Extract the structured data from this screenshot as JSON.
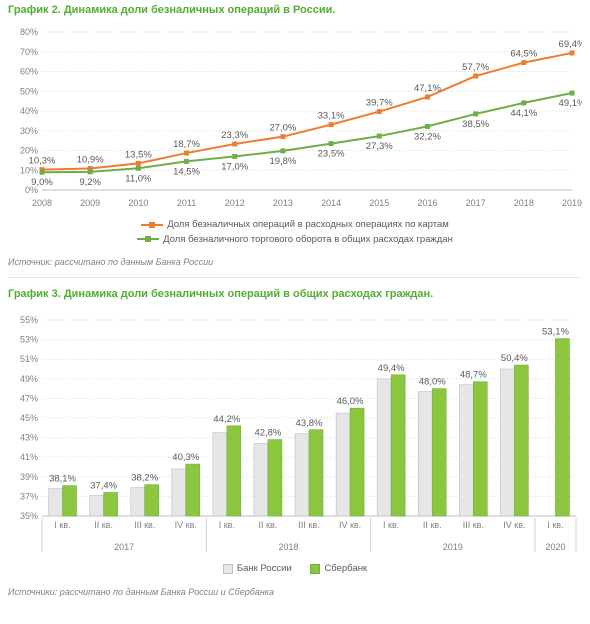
{
  "chart2": {
    "title": "График 2. Динамика доли безналичных операций в России.",
    "title_color": "#52ae32",
    "type": "line",
    "background": "#ffffff",
    "grid_color": "#d9d9d9",
    "axis_color": "#bfbfbf",
    "label_color": "#595959",
    "tick_color": "#808080",
    "label_fontsize": 9.5,
    "tick_fontsize": 9,
    "ylim": [
      0,
      80
    ],
    "ytick_step": 10,
    "ytick_suffix": "%",
    "categories": [
      "2008",
      "2009",
      "2010",
      "2011",
      "2012",
      "2013",
      "2014",
      "2015",
      "2016",
      "2017",
      "2018",
      "2019"
    ],
    "series": [
      {
        "name": "Доля безналичных операций в расходных операциях по картам",
        "color": "#ed7d31",
        "marker": "square",
        "marker_size": 5,
        "line_width": 2,
        "values": [
          10.3,
          10.9,
          13.5,
          18.7,
          23.3,
          27.0,
          33.1,
          39.7,
          47.1,
          57.7,
          64.5,
          69.4
        ],
        "labels": [
          "10,3%",
          "10,9%",
          "13,5%",
          "18,7%",
          "23,3%",
          "27,0%",
          "33,1%",
          "39,7%",
          "47,1%",
          "57,7%",
          "64,5%",
          "69,4%"
        ],
        "label_pos": "above"
      },
      {
        "name": "Доля безналичного торгового оборота в общих расходах граждан",
        "color": "#70ad47",
        "marker": "square",
        "marker_size": 5,
        "line_width": 2,
        "values": [
          9.0,
          9.2,
          11.0,
          14.5,
          17.0,
          19.8,
          23.5,
          27.3,
          32.2,
          38.5,
          44.1,
          49.1
        ],
        "labels": [
          "9,0%",
          "9,2%",
          "11,0%",
          "14,5%",
          "17,0%",
          "19,8%",
          "23,5%",
          "27,3%",
          "32,2%",
          "38,5%",
          "44,1%",
          "49,1%"
        ],
        "label_pos": "below"
      }
    ],
    "source": "Источник: рассчитано по данным Банка России"
  },
  "chart3": {
    "title": "График 3. Динамика доли безналичных операций в общих расходах граждан.",
    "title_color": "#52ae32",
    "type": "bar",
    "background": "#ffffff",
    "grid_color": "#d9d9d9",
    "axis_color": "#bfbfbf",
    "label_color": "#595959",
    "tick_color": "#808080",
    "label_fontsize": 9.5,
    "tick_fontsize": 9,
    "ylim": [
      35,
      55
    ],
    "ytick_step": 2,
    "ytick_suffix": "%",
    "categories": [
      "I кв.",
      "II кв.",
      "III кв.",
      "IV кв.",
      "I кв.",
      "II кв.",
      "III кв.",
      "IV кв.",
      "I кв.",
      "II кв.",
      "III кв.",
      "IV кв.",
      "I кв."
    ],
    "groups": [
      {
        "label": "2017",
        "span": [
          0,
          3
        ]
      },
      {
        "label": "2018",
        "span": [
          4,
          7
        ]
      },
      {
        "label": "2019",
        "span": [
          8,
          11
        ]
      },
      {
        "label": "2020",
        "span": [
          12,
          12
        ]
      }
    ],
    "series": [
      {
        "name": "Банк России",
        "color": "#e6e6e6",
        "border": "#bfbfbf",
        "values": [
          37.8,
          37.1,
          37.9,
          39.8,
          43.5,
          42.4,
          43.4,
          45.5,
          49.0,
          47.7,
          48.4,
          50.0,
          null
        ]
      },
      {
        "name": "Сбербанк",
        "color": "#8cc63f",
        "border": "#70ad47",
        "values": [
          38.1,
          37.4,
          38.2,
          40.3,
          44.2,
          42.8,
          43.8,
          46.0,
          49.4,
          48.0,
          48.7,
          50.4,
          53.1
        ]
      }
    ],
    "bar_labels": [
      "38,1%",
      "37,4%",
      "38,2%",
      "40,3%",
      "44,2%",
      "42,8%",
      "43,8%",
      "46,0%",
      "49,4%",
      "48,0%",
      "48,7%",
      "50,4%",
      "53,1%"
    ],
    "bar_width": 0.34,
    "source": "Источники: рассчитано по данным Банка России и Сбербанка"
  }
}
